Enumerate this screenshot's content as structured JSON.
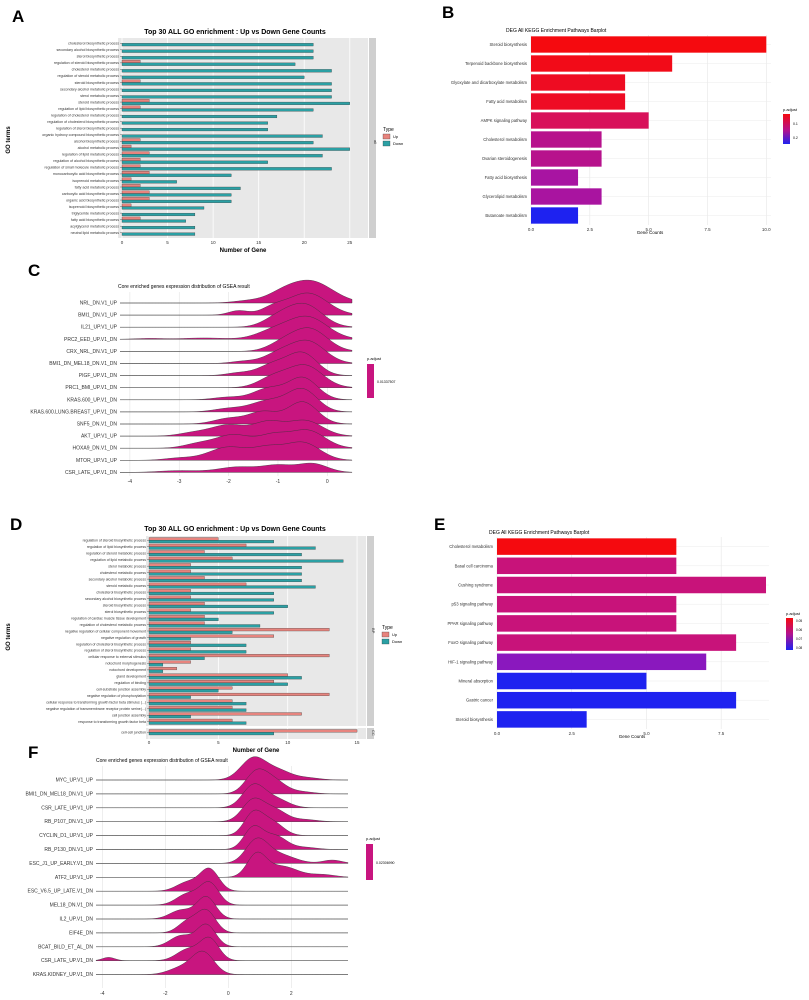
{
  "panel_labels": [
    "A",
    "B",
    "C",
    "D",
    "E",
    "F"
  ],
  "colors": {
    "up": "#E7847E",
    "down": "#2BA0A4",
    "panel_bg": "#E8E8E8",
    "ridge": "#C8157F",
    "gradient_high": "#F50A0F",
    "gradient_mid": "#B2128F",
    "gradient_low": "#1E22F0"
  },
  "chart_data": [
    {
      "id": "A",
      "type": "bar",
      "orientation": "horizontal",
      "title": "Top 30 ALL GO enrichment : Up vs Down Gene Counts",
      "xlabel": "Number of Gene",
      "ylabel": "GO terms",
      "facet_label": "all",
      "legend_title": "Type",
      "legend_labels": [
        "Up",
        "Down"
      ],
      "xlim": [
        0,
        27
      ],
      "xticks": [
        0,
        5,
        10,
        15,
        20,
        25
      ],
      "categories": [
        "cholesterol biosynthetic process",
        "secondary alcohol biosynthetic process",
        "sterol biosynthetic process",
        "regulation of steroid biosynthetic process",
        "cholesterol metabolic process",
        "regulation of steroid metabolic process",
        "steroid biosynthetic process",
        "secondary alcohol metabolic process",
        "sterol metabolic process",
        "steroid metabolic process",
        "regulation of lipid biosynthetic process",
        "regulation of cholesterol metabolic process",
        "regulation of cholesterol biosynthetic process",
        "regulation of sterol biosynthetic process",
        "organic hydroxy compound biosynthetic process",
        "alcohol biosynthetic process",
        "alcohol metabolic process",
        "regulation of lipid metabolic process",
        "regulation of alcohol biosynthetic process",
        "regulation of small molecule metabolic process",
        "monocarboxylic acid biosynthetic process",
        "isoprenoid metabolic process",
        "fatty acid metabolic process",
        "carboxylic acid biosynthetic process",
        "organic acid biosynthetic process",
        "isoprenoid biosynthetic process",
        "triglyceride metabolic process",
        "fatty acid biosynthetic process",
        "acylglycerol metabolic process",
        "neutral lipid metabolic process"
      ],
      "series": [
        {
          "name": "Up",
          "values": [
            0,
            0,
            0,
            2,
            0,
            0,
            2,
            0,
            0,
            3,
            2,
            0,
            0,
            0,
            0,
            2,
            1,
            3,
            2,
            2,
            3,
            1,
            2,
            3,
            3,
            1,
            0,
            2,
            0,
            0
          ]
        },
        {
          "name": "Down",
          "values": [
            21,
            21,
            21,
            19,
            23,
            20,
            23,
            23,
            23,
            25,
            21,
            17,
            16,
            16,
            22,
            21,
            25,
            22,
            16,
            23,
            12,
            6,
            13,
            12,
            12,
            9,
            8,
            7,
            8,
            8
          ]
        }
      ]
    },
    {
      "id": "B",
      "type": "bar",
      "orientation": "horizontal",
      "title": "DEG All KEGG Enrichment Pathways Barplot",
      "xlabel": "Gene Counts",
      "legend_title": "p.adjust",
      "legend_ticks": [
        "0.1",
        "0.2"
      ],
      "xlim": [
        0,
        10.2
      ],
      "xticks": [
        0.0,
        2.5,
        5.0,
        7.5,
        10.0
      ],
      "tick_labels": [
        "0.0",
        "2.5",
        "5.0",
        "7.5",
        "10.0"
      ],
      "categories": [
        "Steroid biosynthesis",
        "Terpenoid backbone biosynthesis",
        "Glyoxylate and dicarboxylate metabolism",
        "Fatty acid metabolism",
        "AMPK signaling pathway",
        "Cholesterol metabolism",
        "Ovarian steroidogenesis",
        "Fatty acid biosynthesis",
        "Glycerolipid metabolism",
        "Butanoate metabolism"
      ],
      "values": [
        10,
        6,
        4,
        4,
        5,
        3,
        3,
        2,
        3,
        2
      ],
      "colors": [
        "#F50A0F",
        "#F20B18",
        "#EE0C22",
        "#EE0C24",
        "#D8115A",
        "#B7128C",
        "#B7128C",
        "#A814A2",
        "#A914A0",
        "#1E22F0"
      ]
    },
    {
      "id": "C",
      "type": "ridge",
      "title": "Core enriched genes expression distribution of GSEA result",
      "legend_title": "p.adjust",
      "legend_value": "0.01337507",
      "xlim": [
        -4.2,
        0.5
      ],
      "xticks": [
        -4,
        -3,
        -2,
        -1,
        0
      ],
      "categories": [
        "NRL_DN.V1_UP",
        "BMI1_DN.V1_UP",
        "IL21_UP.V1_UP",
        "PRC2_EED_UP.V1_DN",
        "CRX_NRL_DN.V1_UP",
        "BMI1_DN_MEL18_DN.V1_DN",
        "PIGF_UP.V1_DN",
        "PRC1_BMI_UP.V1_DN",
        "KRAS.600_UP.V1_DN",
        "KRAS.600.LUNG.BREAST_UP.V1_DN",
        "SNF5_DN.V1_DN",
        "AKT_UP.V1_UP",
        "HOXA9_DN.V1_DN",
        "MTOR_UP.V1_UP",
        "CSR_LATE_UP.V1_DN"
      ],
      "ridges": [
        [
          [
            -0.35,
            0.45,
            1.0
          ],
          [
            -0.95,
            0.3,
            0.25
          ],
          [
            -1.6,
            0.3,
            0.1
          ]
        ],
        [
          [
            -0.4,
            0.4,
            1.0
          ],
          [
            -1.1,
            0.25,
            0.3
          ],
          [
            -1.8,
            0.2,
            0.2
          ]
        ],
        [
          [
            -0.45,
            0.35,
            1.0
          ],
          [
            -1.0,
            0.3,
            0.4
          ]
        ],
        [
          [
            -0.4,
            0.4,
            1.0
          ],
          [
            -1.1,
            0.35,
            0.35
          ],
          [
            -2.5,
            0.4,
            0.06
          ],
          [
            -3.6,
            0.3,
            0.04
          ]
        ],
        [
          [
            -0.35,
            0.35,
            1.0
          ],
          [
            -0.9,
            0.3,
            0.35
          ]
        ],
        [
          [
            -0.4,
            0.35,
            1.0
          ],
          [
            -1.0,
            0.3,
            0.4
          ],
          [
            -1.7,
            0.25,
            0.1
          ]
        ],
        [
          [
            -0.5,
            0.3,
            1.0
          ],
          [
            -1.1,
            0.3,
            0.5
          ],
          [
            -1.8,
            0.25,
            0.12
          ]
        ],
        [
          [
            -0.45,
            0.35,
            1.0
          ],
          [
            -1.1,
            0.3,
            0.45
          ]
        ],
        [
          [
            -0.5,
            0.3,
            1.0
          ],
          [
            -1.2,
            0.3,
            0.5
          ],
          [
            -2.0,
            0.3,
            0.12
          ]
        ],
        [
          [
            -0.5,
            0.3,
            1.0
          ],
          [
            -1.2,
            0.35,
            0.5
          ],
          [
            -2.0,
            0.3,
            0.15
          ]
        ],
        [
          [
            -0.5,
            0.3,
            1.0
          ],
          [
            -1.3,
            0.3,
            0.55
          ],
          [
            -2.0,
            0.3,
            0.25
          ]
        ],
        [
          [
            -0.45,
            0.35,
            0.7
          ],
          [
            -1.2,
            0.3,
            0.6
          ],
          [
            -2.0,
            0.35,
            0.5
          ],
          [
            -2.7,
            0.3,
            0.15
          ]
        ],
        [
          [
            -0.4,
            0.35,
            0.8
          ],
          [
            -1.1,
            0.3,
            0.55
          ],
          [
            -1.9,
            0.35,
            0.6
          ],
          [
            -2.6,
            0.3,
            0.2
          ]
        ],
        [
          [
            -0.5,
            0.35,
            0.8
          ],
          [
            -1.2,
            0.3,
            0.5
          ],
          [
            -2.0,
            0.4,
            0.6
          ],
          [
            -3.0,
            0.3,
            0.1
          ]
        ],
        [
          [
            -0.3,
            0.3,
            0.4
          ],
          [
            -1.0,
            0.3,
            0.3
          ],
          [
            -1.8,
            0.4,
            0.25
          ],
          [
            -3.0,
            0.4,
            0.08
          ]
        ]
      ]
    },
    {
      "id": "D",
      "type": "bar",
      "orientation": "horizontal",
      "title": "Top 30 ALL GO enrichment : Up vs Down Gene Counts",
      "xlabel": "Number of Gene",
      "ylabel": "GO terms",
      "facet_labels": [
        "BP",
        "CC"
      ],
      "legend_title": "Type",
      "legend_labels": [
        "Up",
        "Down"
      ],
      "xlim": [
        0,
        15.5
      ],
      "xticks": [
        0,
        5,
        10,
        15
      ],
      "categories": [
        "regulation of steroid biosynthetic process",
        "regulation of lipid biosynthetic process",
        "regulation of steroid metabolic process",
        "regulation of lipid metabolic process",
        "sterol metabolic process",
        "cholesterol metabolic process",
        "secondary alcohol metabolic process",
        "steroid metabolic process",
        "cholesterol biosynthetic process",
        "secondary alcohol biosynthetic process",
        "steroid biosynthetic process",
        "sterol biosynthetic process",
        "regulation of cardiac muscle tissue development",
        "regulation of cholesterol metabolic process",
        "negative regulation of cellular component movement",
        "negative regulation of growth",
        "regulation of cholesterol biosynthetic process",
        "regulation of sterol biosynthetic process",
        "cellular response to external stimulus",
        "notochord morphogenesis",
        "notochord development",
        "gland development",
        "regulation of binding",
        "cell-substrate junction assembly",
        "negative regulation of phosphorylation",
        "cellular response to transforming growth factor beta stimulus (...)",
        "negative regulation of transmembrane receptor protein serine(...)",
        "cell junction assembly",
        "response to transforming growth factor beta",
        "cell-cell junction"
      ],
      "series": [
        {
          "name": "Up",
          "values": [
            5,
            7,
            4,
            6,
            3,
            3,
            4,
            7,
            3,
            3,
            4,
            3,
            4,
            4,
            13,
            9,
            3,
            3,
            13,
            3,
            2,
            10,
            9,
            6,
            13,
            6,
            6,
            11,
            6,
            15
          ]
        },
        {
          "name": "Down",
          "values": [
            9,
            12,
            11,
            14,
            11,
            11,
            11,
            12,
            9,
            9,
            10,
            9,
            5,
            8,
            6,
            3,
            7,
            7,
            4,
            1,
            1,
            11,
            10,
            5,
            3,
            7,
            7,
            3,
            7,
            9
          ]
        }
      ]
    },
    {
      "id": "E",
      "type": "bar",
      "orientation": "horizontal",
      "title": "DEG All KEGG Enrichment Pathways Barplot",
      "xlabel": "Gene Counts",
      "legend_title": "p.adjust",
      "legend_ticks": [
        "0.05",
        "0.06",
        "0.07",
        "0.08"
      ],
      "xlim": [
        0,
        9.1
      ],
      "xticks": [
        0.0,
        2.5,
        5.0,
        7.5
      ],
      "tick_labels": [
        "0.0",
        "2.5",
        "5.0",
        "7.5"
      ],
      "categories": [
        "Cholesterol metabolism",
        "Basal cell carcinoma",
        "Cushing syndrome",
        "p53 signaling pathway",
        "PPAR signaling pathway",
        "FoxO signaling pathway",
        "HIF-1 signaling pathway",
        "Mineral absorption",
        "Gastric cancer",
        "Steroid biosynthesis"
      ],
      "values": [
        6,
        6,
        9,
        6,
        6,
        8,
        7,
        5,
        8,
        3
      ],
      "colors": [
        "#F50A0F",
        "#C8137A",
        "#C8137A",
        "#C8137A",
        "#C8137A",
        "#C8137A",
        "#8A18BE",
        "#1E22F0",
        "#1E22F0",
        "#1E22F0"
      ]
    },
    {
      "id": "F",
      "type": "ridge",
      "title": "Core enriched genes expression distribution of GSEA result",
      "legend_title": "p.adjust",
      "legend_value": "0.02306990",
      "xlim": [
        -4.2,
        3.8
      ],
      "xticks": [
        -4,
        -2,
        0,
        2
      ],
      "categories": [
        "MYC_UP.V1_UP",
        "BMI1_DN_MEL18_DN.V1_UP",
        "CSR_LATE_UP.V1_UP",
        "RB_P107_DN.V1_UP",
        "CYCLIN_D1_UP.V1_UP",
        "RB_P130_DN.V1_UP",
        "ESC_J1_UP_EARLY.V1_DN",
        "ATF2_UP.V1_UP",
        "ESC_V6.5_UP_LATE.V1_DN",
        "MEL18_DN.V1_DN",
        "IL2_UP.V1_DN",
        "EIF4E_DN",
        "BCAT_BILD_ET_AL_DN",
        "CSR_LATE_UP.V1_DN",
        "KRAS.KIDNEY_UP.V1_DN"
      ],
      "ridges": [
        [
          [
            0.8,
            0.4,
            1.0
          ],
          [
            1.6,
            0.4,
            0.4
          ],
          [
            2.5,
            0.4,
            0.1
          ]
        ],
        [
          [
            0.9,
            0.35,
            1.0
          ],
          [
            1.5,
            0.35,
            0.5
          ],
          [
            2.3,
            0.4,
            0.1
          ]
        ],
        [
          [
            0.8,
            0.35,
            1.0
          ],
          [
            1.5,
            0.4,
            0.4
          ]
        ],
        [
          [
            0.8,
            0.35,
            1.0
          ],
          [
            1.5,
            0.35,
            0.5
          ],
          [
            2.4,
            0.4,
            0.1
          ]
        ],
        [
          [
            0.8,
            0.3,
            1.0
          ],
          [
            1.4,
            0.35,
            0.6
          ]
        ],
        [
          [
            0.8,
            0.3,
            1.0
          ],
          [
            1.5,
            0.35,
            0.6
          ],
          [
            2.4,
            0.4,
            0.1
          ]
        ],
        [
          [
            0.9,
            0.35,
            1.0
          ],
          [
            1.6,
            0.5,
            0.4
          ],
          [
            3.3,
            0.3,
            0.15
          ]
        ],
        [
          [
            0.9,
            0.3,
            1.0
          ],
          [
            1.7,
            0.5,
            0.5
          ],
          [
            3.0,
            0.4,
            0.12
          ]
        ],
        [
          [
            -0.6,
            0.3,
            1.0
          ],
          [
            -1.3,
            0.35,
            0.4
          ]
        ],
        [
          [
            -0.6,
            0.3,
            1.0
          ],
          [
            -1.3,
            0.35,
            0.5
          ]
        ],
        [
          [
            -0.7,
            0.3,
            1.0
          ],
          [
            -1.5,
            0.35,
            0.4
          ]
        ],
        [
          [
            -0.7,
            0.3,
            1.0
          ],
          [
            -1.3,
            0.3,
            0.5
          ]
        ],
        [
          [
            -0.7,
            0.3,
            1.0
          ],
          [
            -1.5,
            0.35,
            0.5
          ]
        ],
        [
          [
            -0.6,
            0.3,
            1.0
          ],
          [
            -1.3,
            0.35,
            0.5
          ],
          [
            -3.8,
            0.2,
            0.15
          ]
        ],
        [
          [
            -0.8,
            0.35,
            1.0
          ],
          [
            -1.5,
            0.4,
            0.3
          ]
        ]
      ]
    }
  ]
}
